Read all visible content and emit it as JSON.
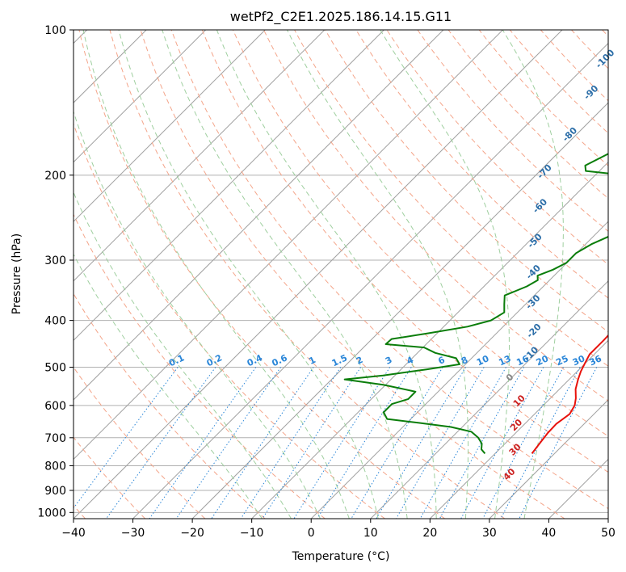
{
  "chart_data": {
    "type": "line",
    "title": "wetPf2_C2E1.2025.186.14.15.G11",
    "xlabel": "Temperature (°C)",
    "ylabel": "Pressure (hPa)",
    "xlim": [
      -40,
      50
    ],
    "ylim": [
      1030,
      100
    ],
    "y_scale": "log",
    "x_ticks": [
      -40,
      -30,
      -20,
      -10,
      0,
      10,
      20,
      30,
      40,
      50
    ],
    "y_ticks": [
      100,
      200,
      300,
      400,
      500,
      600,
      700,
      800,
      900,
      1000
    ],
    "grid": true,
    "colors": {
      "temperature": "#e8120c",
      "dewpoint": "#0a7d0a",
      "isotherm": "#a0a0a0",
      "dry_adiabat": "#f4a58a",
      "moist_adiabat": "#9fcf9f",
      "mixing_ratio": "#2a86d8",
      "mixing_label": "#2a86d8",
      "hgt_label": "#2c6ea8",
      "pos_label": "#cc2222",
      "zero_label": "#888888"
    },
    "series": [
      {
        "key": "temperature",
        "points": [
          [
            18.0,
            100
          ],
          [
            18.2,
            103
          ],
          [
            17.5,
            108
          ],
          [
            13.5,
            118
          ],
          [
            12.2,
            125
          ],
          [
            12.3,
            133
          ],
          [
            9.0,
            145
          ],
          [
            8.0,
            155
          ],
          [
            7.3,
            165
          ],
          [
            7.2,
            178
          ],
          [
            7.9,
            190
          ],
          [
            7.0,
            198
          ],
          [
            6.1,
            207
          ],
          [
            6.9,
            218
          ],
          [
            9.6,
            235
          ],
          [
            10.4,
            250
          ],
          [
            10.9,
            270
          ],
          [
            11.9,
            295
          ],
          [
            14.4,
            320
          ],
          [
            16.7,
            345
          ],
          [
            18.1,
            365
          ],
          [
            18.8,
            385
          ],
          [
            19.1,
            410
          ],
          [
            19.2,
            440
          ],
          [
            19.2,
            470
          ],
          [
            19.9,
            490
          ],
          [
            20.6,
            510
          ],
          [
            21.5,
            530
          ],
          [
            22.7,
            555
          ],
          [
            24.3,
            580
          ],
          [
            25.3,
            600
          ],
          [
            25.9,
            625
          ],
          [
            25.3,
            655
          ],
          [
            25.4,
            685
          ],
          [
            25.8,
            720
          ],
          [
            26.2,
            755
          ]
        ]
      },
      {
        "key": "dewpoint",
        "points": [
          [
            -0.8,
            100
          ],
          [
            -1.7,
            106
          ],
          [
            -2.8,
            113
          ],
          [
            -3.5,
            125
          ],
          [
            -4.0,
            133
          ],
          [
            -5.8,
            143
          ],
          [
            -7.7,
            155
          ],
          [
            -9.1,
            167
          ],
          [
            -11.3,
            180
          ],
          [
            -13.3,
            191
          ],
          [
            -12.3,
            196
          ],
          [
            -5.0,
            200
          ],
          [
            0.3,
            205
          ],
          [
            2.2,
            212
          ],
          [
            3.2,
            222
          ],
          [
            3.8,
            232
          ],
          [
            4.8,
            245
          ],
          [
            5.0,
            256
          ],
          [
            2.6,
            268
          ],
          [
            1.0,
            278
          ],
          [
            -0.1,
            290
          ],
          [
            -0.1,
            304
          ],
          [
            -1.2,
            314
          ],
          [
            -2.8,
            323
          ],
          [
            -2.0,
            330
          ],
          [
            -2.8,
            340
          ],
          [
            -5.0,
            355
          ],
          [
            -3.6,
            370
          ],
          [
            -2.2,
            385
          ],
          [
            -3.1,
            400
          ],
          [
            -6.0,
            412
          ],
          [
            -11.4,
            425
          ],
          [
            -16.7,
            437
          ],
          [
            -16.8,
            448
          ],
          [
            -9.8,
            455
          ],
          [
            -7.0,
            467
          ],
          [
            -2.6,
            479
          ],
          [
            -1.0,
            493
          ],
          [
            -5.6,
            505
          ],
          [
            -12.0,
            520
          ],
          [
            -17.8,
            530
          ],
          [
            -10.3,
            544
          ],
          [
            -3.8,
            562
          ],
          [
            -3.8,
            582
          ],
          [
            -5.7,
            596
          ],
          [
            -5.7,
            620
          ],
          [
            -4.0,
            640
          ],
          [
            2.0,
            652
          ],
          [
            8.1,
            665
          ],
          [
            12.3,
            680
          ],
          [
            14.5,
            700
          ],
          [
            16.1,
            720
          ],
          [
            17.0,
            740
          ],
          [
            18.3,
            755
          ]
        ]
      }
    ],
    "height_labels": [
      {
        "text": "-100",
        "t": -27.8,
        "p": 115
      },
      {
        "text": "-90",
        "t": -24.5,
        "p": 135
      },
      {
        "text": "-80",
        "t": -21.0,
        "p": 165
      },
      {
        "text": "-70",
        "t": -19.0,
        "p": 197
      },
      {
        "text": "-60",
        "t": -14.0,
        "p": 232
      },
      {
        "text": "-50",
        "t": -9.0,
        "p": 274
      },
      {
        "text": "-40",
        "t": -4.0,
        "p": 318
      },
      {
        "text": "-30",
        "t": 1.0,
        "p": 367
      },
      {
        "text": "-20",
        "t": 6.0,
        "p": 421
      },
      {
        "text": "-10",
        "t": 9.4,
        "p": 470
      }
    ],
    "zero_label": {
      "text": "0",
      "t": 9.8,
      "p": 526
    },
    "positive_labels": [
      {
        "text": "10",
        "t": 15.3,
        "p": 588
      },
      {
        "text": "20",
        "t": 18.9,
        "p": 660
      },
      {
        "text": "30",
        "t": 22.8,
        "p": 742
      },
      {
        "text": "40",
        "t": 26.0,
        "p": 835
      }
    ],
    "mixing_ratio_labels": [
      "0.1",
      "0.2",
      "0.4",
      "0.6",
      "1",
      "1.5",
      "2",
      "3",
      "4",
      "6",
      "8",
      "10",
      "13",
      "16",
      "20",
      "25",
      "30",
      "36"
    ]
  }
}
